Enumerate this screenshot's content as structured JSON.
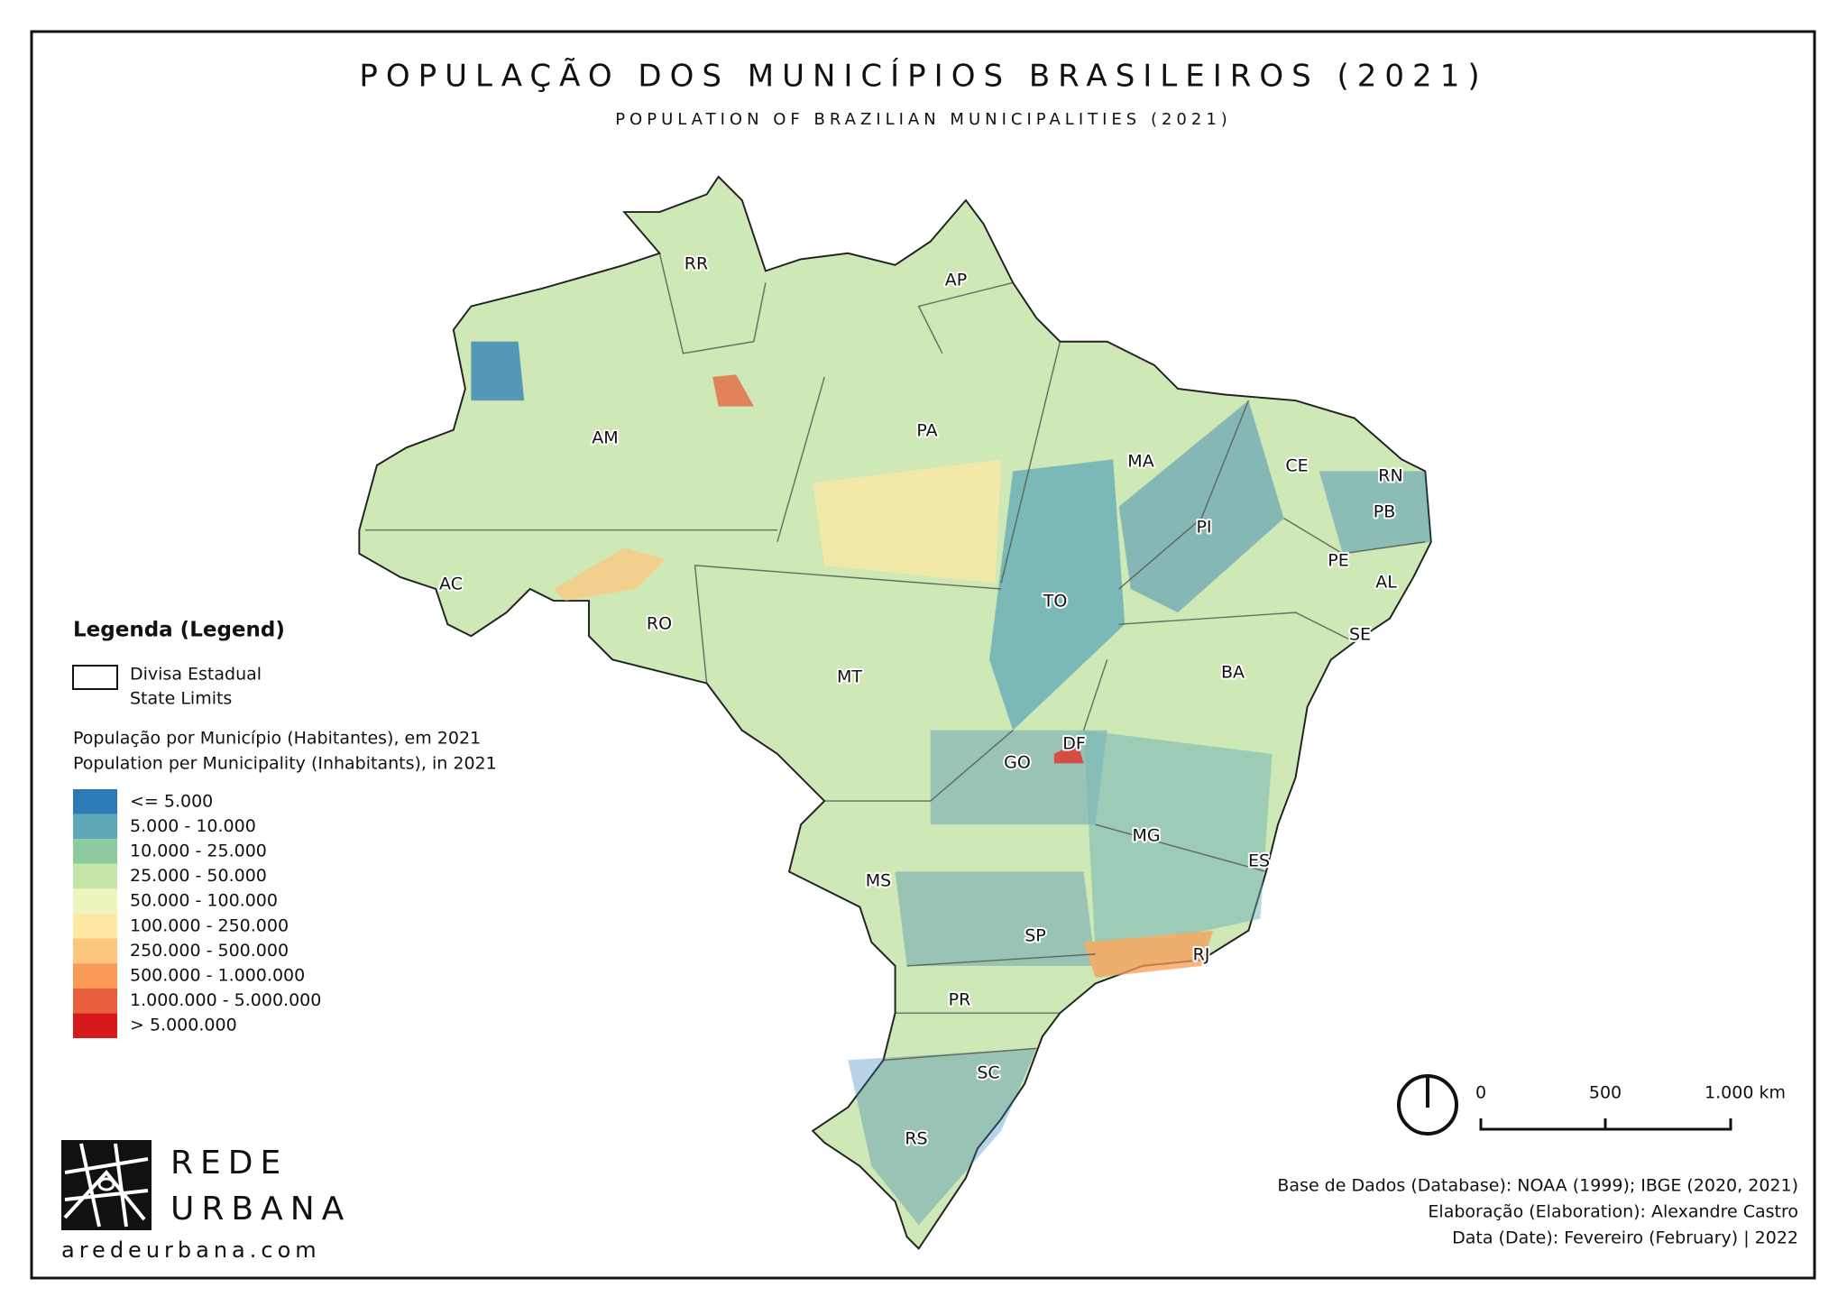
{
  "title": "POPULAÇÃO DOS MUNICÍPIOS BRASILEIROS (2021)",
  "subtitle": "POPULATION OF BRAZILIAN MUNICIPALITIES (2021)",
  "states": [
    "RR",
    "AP",
    "AM",
    "PA",
    "MA",
    "CE",
    "RN",
    "PB",
    "PI",
    "PE",
    "AL",
    "AC",
    "TO",
    "RO",
    "SE",
    "BA",
    "MT",
    "DF",
    "GO",
    "MG",
    "ES",
    "MS",
    "SP",
    "RJ",
    "PR",
    "SC",
    "RS"
  ],
  "legend": {
    "title": "Legenda (Legend)",
    "boundary_label": [
      "Divisa Estadual",
      "State Limits"
    ],
    "population_heading": [
      "População por Município (Habitantes), em 2021",
      "Population per Municipality (Inhabitants), in 2021"
    ],
    "classes": [
      {
        "label": "<= 5.000",
        "color": "#2c7bb6"
      },
      {
        "label": "5.000 - 10.000",
        "color": "#5fa8b8"
      },
      {
        "label": "10.000 - 25.000",
        "color": "#8ccb9e"
      },
      {
        "label": "25.000 - 50.000",
        "color": "#c4e6a8"
      },
      {
        "label": "50.000 - 100.000",
        "color": "#eef6bd"
      },
      {
        "label": "100.000 - 250.000",
        "color": "#fee8a4"
      },
      {
        "label": "250.000 - 500.000",
        "color": "#fdc67e"
      },
      {
        "label": "500.000 - 1.000.000",
        "color": "#f99b56"
      },
      {
        "label": "1.000.000 - 5.000.000",
        "color": "#e85f3c"
      },
      {
        "label": "> 5.000.000",
        "color": "#d7191c"
      }
    ]
  },
  "scale_bar": [
    "0",
    "500",
    "1.000 km"
  ],
  "credits": [
    "Base de Dados (Database): NOAA (1999); IBGE (2020, 2021)",
    "Elaboração (Elaboration): Alexandre Castro",
    "Data (Date): Fevereiro (February) | 2022"
  ],
  "logo": {
    "lines": [
      "REDE",
      "URBANA"
    ],
    "url": "aredeurbana.com"
  }
}
